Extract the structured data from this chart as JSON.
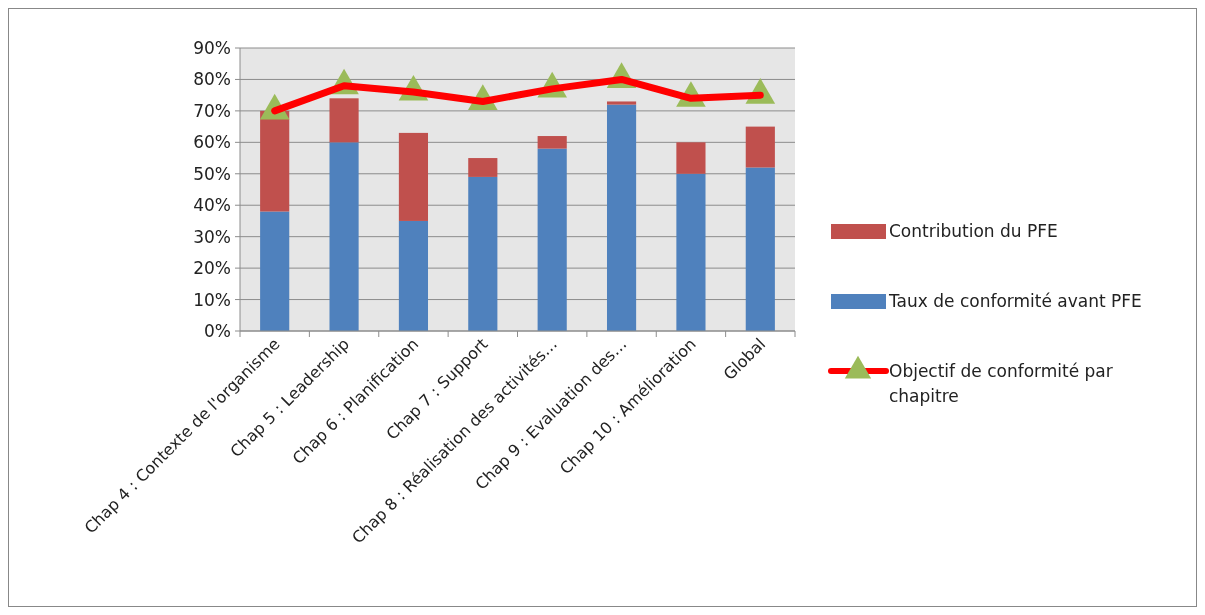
{
  "chart_data": {
    "type": "bar",
    "stacked": true,
    "categories": [
      "Chap 4 : Contexte de l'organisme",
      "Chap 5 : Leadership",
      "Chap 6 : Planification",
      "Chap 7 : Support",
      "Chap 8 : Réalisation des activités…",
      "Chap 9 : Evaluation des…",
      "Chap 10 : Amélioration",
      "Global"
    ],
    "series": [
      {
        "name": "Taux de conformité avant PFE",
        "color": "#4f81bd",
        "values": [
          0.38,
          0.6,
          0.35,
          0.49,
          0.58,
          0.72,
          0.5,
          0.52
        ]
      },
      {
        "name": "Contribution du PFE",
        "color": "#c0504d",
        "values": [
          0.32,
          0.14,
          0.28,
          0.06,
          0.04,
          0.01,
          0.1,
          0.13
        ]
      },
      {
        "name": "Objectif de conformité par chapitre",
        "type": "line",
        "color": "#ff0000",
        "marker": "triangle",
        "values": [
          0.7,
          0.78,
          0.76,
          0.73,
          0.77,
          0.8,
          0.74,
          0.75
        ]
      }
    ],
    "ylim": [
      0,
      0.9
    ],
    "yticks": [
      {
        "value": 0,
        "label": "0%"
      },
      {
        "value": 0.1,
        "label": "10%"
      },
      {
        "value": 0.2,
        "label": "20%"
      },
      {
        "value": 0.3,
        "label": "30%"
      },
      {
        "value": 0.4,
        "label": "40%"
      },
      {
        "value": 0.5,
        "label": "50%"
      },
      {
        "value": 0.6,
        "label": "60%"
      },
      {
        "value": 0.7,
        "label": "70%"
      },
      {
        "value": 0.8,
        "label": "80%"
      },
      {
        "value": 0.9,
        "label": "90%"
      }
    ],
    "grid": "y",
    "legend": "right"
  }
}
